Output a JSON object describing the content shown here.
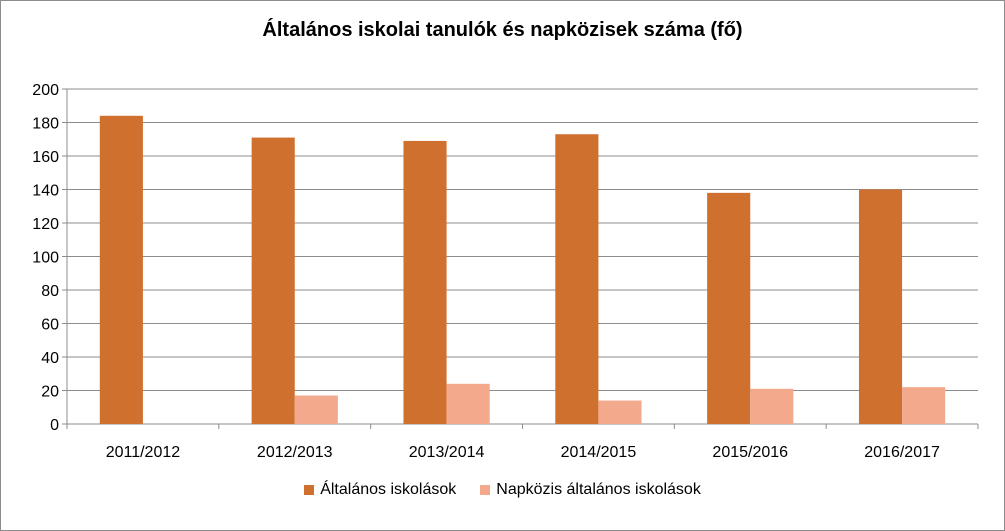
{
  "chart_data": {
    "type": "bar",
    "title": "Általános iskolai tanulók és napközisek száma (fő)",
    "xlabel": "",
    "ylabel": "",
    "categories": [
      "2011/2012",
      "2012/2013",
      "2013/2014",
      "2014/2015",
      "2015/2016",
      "2016/2017"
    ],
    "series": [
      {
        "name": "Általános iskolások",
        "values": [
          184,
          171,
          169,
          173,
          138,
          140
        ],
        "color": "#d0702f"
      },
      {
        "name": "Napközis általános iskolások",
        "values": [
          null,
          17,
          24,
          14,
          21,
          22
        ],
        "color": "#f2a98c"
      }
    ],
    "ylim": [
      0,
      200
    ],
    "yticks": [
      0,
      20,
      40,
      60,
      80,
      100,
      120,
      140,
      160,
      180,
      200
    ],
    "grid": true,
    "legend_position": "bottom"
  }
}
